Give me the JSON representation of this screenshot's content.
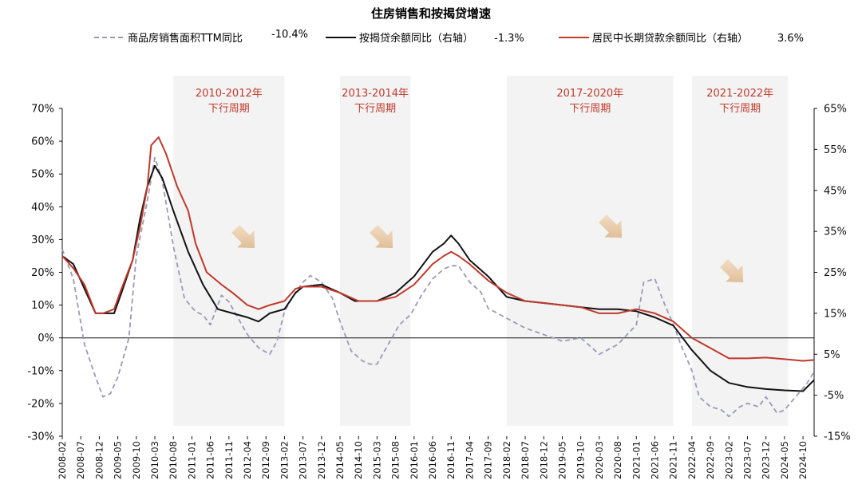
{
  "chart_data": {
    "type": "line",
    "title": "住房销售和按揭贷增速",
    "legend": [
      {
        "label": "商品房销售面积TTM同比",
        "value": "-10.4%",
        "color": "#9a9ab8",
        "style": "dashed"
      },
      {
        "label": "按揭贷余额同比（右轴）",
        "value": "-1.3%",
        "color": "#111111",
        "style": "solid"
      },
      {
        "label": "居民中长期贷款余额同比（右轴）",
        "value": "3.6%",
        "color": "#c0392b",
        "style": "solid"
      }
    ],
    "x_tick_labels": [
      "2008-02",
      "2008-07",
      "2008-12",
      "2009-05",
      "2009-10",
      "2010-03",
      "2010-08",
      "2011-01",
      "2011-06",
      "2011-11",
      "2012-04",
      "2012-09",
      "2013-02",
      "2013-07",
      "2013-12",
      "2014-05",
      "2014-10",
      "2015-03",
      "2015-08",
      "2016-01",
      "2016-06",
      "2016-11",
      "2017-04",
      "2017-09",
      "2018-02",
      "2018-07",
      "2018-12",
      "2019-05",
      "2019-10",
      "2020-03",
      "2020-08",
      "2021-01",
      "2021-06",
      "2021-11",
      "2022-04",
      "2022-09",
      "2023-02",
      "2023-07",
      "2023-12",
      "2024-05",
      "2024-10"
    ],
    "left_axis": {
      "ticks": [
        "70%",
        "60%",
        "50%",
        "40%",
        "30%",
        "20%",
        "10%",
        "0%",
        "-10%",
        "-20%",
        "-30%"
      ],
      "ylim": [
        -30,
        70
      ]
    },
    "right_axis": {
      "ticks": [
        "65%",
        "55%",
        "45%",
        "35%",
        "25%",
        "15%",
        "5%",
        "-5%",
        "-15%"
      ],
      "ylim": [
        -15,
        65
      ]
    },
    "shaded_periods": [
      {
        "label": "2010-2012年",
        "sublabel": "下行周期",
        "start": "2010-08",
        "end": "2013-02"
      },
      {
        "label": "2013-2014年",
        "sublabel": "下行周期",
        "start": "2014-05",
        "end": "2015-12"
      },
      {
        "label": "2017-2020年",
        "sublabel": "下行周期",
        "start": "2018-02",
        "end": "2021-11"
      },
      {
        "label": "2021-2022年",
        "sublabel": "下行周期",
        "start": "2022-04",
        "end": "2024-06"
      }
    ],
    "series": [
      {
        "name": "商品房销售面积TTM同比",
        "axis": "left",
        "color": "#9a9ab8",
        "dash": true,
        "points": [
          [
            "2008-02",
            27
          ],
          [
            "2008-05",
            18
          ],
          [
            "2008-08",
            -2
          ],
          [
            "2008-11",
            -12
          ],
          [
            "2009-01",
            -18
          ],
          [
            "2009-03",
            -17
          ],
          [
            "2009-05",
            -12
          ],
          [
            "2009-08",
            0
          ],
          [
            "2009-10",
            25
          ],
          [
            "2010-01",
            42
          ],
          [
            "2010-03",
            55
          ],
          [
            "2010-05",
            48
          ],
          [
            "2010-08",
            28
          ],
          [
            "2010-11",
            12
          ],
          [
            "2011-02",
            8
          ],
          [
            "2011-04",
            7
          ],
          [
            "2011-06",
            4
          ],
          [
            "2011-09",
            13
          ],
          [
            "2011-11",
            11
          ],
          [
            "2012-02",
            5
          ],
          [
            "2012-04",
            1
          ],
          [
            "2012-07",
            -3
          ],
          [
            "2012-10",
            -5
          ],
          [
            "2012-12",
            -1
          ],
          [
            "2013-02",
            8
          ],
          [
            "2013-05",
            14
          ],
          [
            "2013-07",
            17
          ],
          [
            "2013-09",
            19
          ],
          [
            "2013-12",
            17
          ],
          [
            "2014-03",
            12
          ],
          [
            "2014-05",
            5
          ],
          [
            "2014-08",
            -4
          ],
          [
            "2014-11",
            -7
          ],
          [
            "2015-01",
            -8
          ],
          [
            "2015-03",
            -8
          ],
          [
            "2015-06",
            -2
          ],
          [
            "2015-09",
            4
          ],
          [
            "2015-12",
            7
          ],
          [
            "2016-03",
            13
          ],
          [
            "2016-06",
            18
          ],
          [
            "2016-09",
            21
          ],
          [
            "2016-11",
            22
          ],
          [
            "2017-01",
            22
          ],
          [
            "2017-04",
            17
          ],
          [
            "2017-07",
            14
          ],
          [
            "2017-09",
            9
          ],
          [
            "2018-02",
            6
          ],
          [
            "2018-07",
            3
          ],
          [
            "2018-12",
            1
          ],
          [
            "2019-05",
            -1
          ],
          [
            "2019-10",
            0
          ],
          [
            "2020-03",
            -5
          ],
          [
            "2020-08",
            -2
          ],
          [
            "2021-01",
            4
          ],
          [
            "2021-03",
            17
          ],
          [
            "2021-06",
            18
          ],
          [
            "2021-08",
            12
          ],
          [
            "2021-11",
            4
          ],
          [
            "2022-01",
            -2
          ],
          [
            "2022-04",
            -10
          ],
          [
            "2022-06",
            -18
          ],
          [
            "2022-09",
            -21
          ],
          [
            "2022-12",
            -22
          ],
          [
            "2023-02",
            -24
          ],
          [
            "2023-05",
            -21
          ],
          [
            "2023-07",
            -20
          ],
          [
            "2023-10",
            -21
          ],
          [
            "2023-12",
            -18
          ],
          [
            "2024-03",
            -23
          ],
          [
            "2024-05",
            -22
          ],
          [
            "2024-08",
            -18
          ],
          [
            "2024-11",
            -14
          ],
          [
            "2025-01",
            -10.4
          ]
        ]
      },
      {
        "name": "按揭贷余额同比（右轴）",
        "axis": "right",
        "color": "#111111",
        "dash": false,
        "points": [
          [
            "2008-02",
            29
          ],
          [
            "2008-05",
            27
          ],
          [
            "2008-08",
            21
          ],
          [
            "2008-11",
            15
          ],
          [
            "2009-01",
            15
          ],
          [
            "2009-04",
            15
          ],
          [
            "2009-06",
            20
          ],
          [
            "2009-09",
            28
          ],
          [
            "2009-11",
            38
          ],
          [
            "2010-01",
            46
          ],
          [
            "2010-03",
            51
          ],
          [
            "2010-05",
            48
          ],
          [
            "2010-08",
            40
          ],
          [
            "2010-12",
            30
          ],
          [
            "2011-04",
            22
          ],
          [
            "2011-08",
            16
          ],
          [
            "2011-12",
            15
          ],
          [
            "2012-04",
            14
          ],
          [
            "2012-07",
            13
          ],
          [
            "2012-10",
            15
          ],
          [
            "2013-02",
            16
          ],
          [
            "2013-05",
            20
          ],
          [
            "2013-07",
            21.5
          ],
          [
            "2013-12",
            22
          ],
          [
            "2014-05",
            20
          ],
          [
            "2014-09",
            18
          ],
          [
            "2015-03",
            18
          ],
          [
            "2015-08",
            20
          ],
          [
            "2016-01",
            24
          ],
          [
            "2016-06",
            30
          ],
          [
            "2016-09",
            32
          ],
          [
            "2016-11",
            34
          ],
          [
            "2017-01",
            32
          ],
          [
            "2017-04",
            28
          ],
          [
            "2017-09",
            24
          ],
          [
            "2018-02",
            19
          ],
          [
            "2018-07",
            18
          ],
          [
            "2018-12",
            17.5
          ],
          [
            "2019-05",
            17
          ],
          [
            "2019-10",
            16.5
          ],
          [
            "2020-03",
            16
          ],
          [
            "2020-08",
            16
          ],
          [
            "2021-01",
            15.5
          ],
          [
            "2021-06",
            14
          ],
          [
            "2021-11",
            12
          ],
          [
            "2022-04",
            6
          ],
          [
            "2022-09",
            1
          ],
          [
            "2023-02",
            -2
          ],
          [
            "2023-07",
            -3
          ],
          [
            "2023-12",
            -3.5
          ],
          [
            "2024-05",
            -3.8
          ],
          [
            "2024-10",
            -4
          ],
          [
            "2025-01",
            -1.3
          ]
        ]
      },
      {
        "name": "居民中长期贷款余额同比（右轴）",
        "axis": "right",
        "color": "#c0392b",
        "dash": false,
        "points": [
          [
            "2008-02",
            29
          ],
          [
            "2008-05",
            26
          ],
          [
            "2008-08",
            22
          ],
          [
            "2008-11",
            15
          ],
          [
            "2009-01",
            15
          ],
          [
            "2009-04",
            16
          ],
          [
            "2009-06",
            21
          ],
          [
            "2009-09",
            28
          ],
          [
            "2009-11",
            36
          ],
          [
            "2010-01",
            46
          ],
          [
            "2010-02",
            56
          ],
          [
            "2010-04",
            58
          ],
          [
            "2010-06",
            54
          ],
          [
            "2010-09",
            46
          ],
          [
            "2010-12",
            40
          ],
          [
            "2011-02",
            32
          ],
          [
            "2011-05",
            25
          ],
          [
            "2011-09",
            22
          ],
          [
            "2011-12",
            20
          ],
          [
            "2012-04",
            17
          ],
          [
            "2012-07",
            16
          ],
          [
            "2012-10",
            17
          ],
          [
            "2013-02",
            18
          ],
          [
            "2013-05",
            21
          ],
          [
            "2013-07",
            21.5
          ],
          [
            "2013-12",
            21.5
          ],
          [
            "2014-05",
            20
          ],
          [
            "2014-10",
            18
          ],
          [
            "2015-03",
            18
          ],
          [
            "2015-08",
            19
          ],
          [
            "2016-01",
            22
          ],
          [
            "2016-06",
            27
          ],
          [
            "2016-09",
            29
          ],
          [
            "2016-11",
            30
          ],
          [
            "2017-01",
            29
          ],
          [
            "2017-04",
            27
          ],
          [
            "2017-09",
            23
          ],
          [
            "2018-02",
            20
          ],
          [
            "2018-07",
            18
          ],
          [
            "2018-12",
            17.5
          ],
          [
            "2019-05",
            17
          ],
          [
            "2019-10",
            16.5
          ],
          [
            "2020-03",
            15
          ],
          [
            "2020-08",
            15
          ],
          [
            "2021-01",
            16
          ],
          [
            "2021-06",
            15
          ],
          [
            "2021-11",
            13
          ],
          [
            "2022-04",
            9
          ],
          [
            "2022-09",
            6.5
          ],
          [
            "2023-02",
            4
          ],
          [
            "2023-07",
            4
          ],
          [
            "2023-12",
            4.2
          ],
          [
            "2024-05",
            3.8
          ],
          [
            "2024-10",
            3.4
          ],
          [
            "2025-01",
            3.6
          ]
        ]
      }
    ]
  }
}
